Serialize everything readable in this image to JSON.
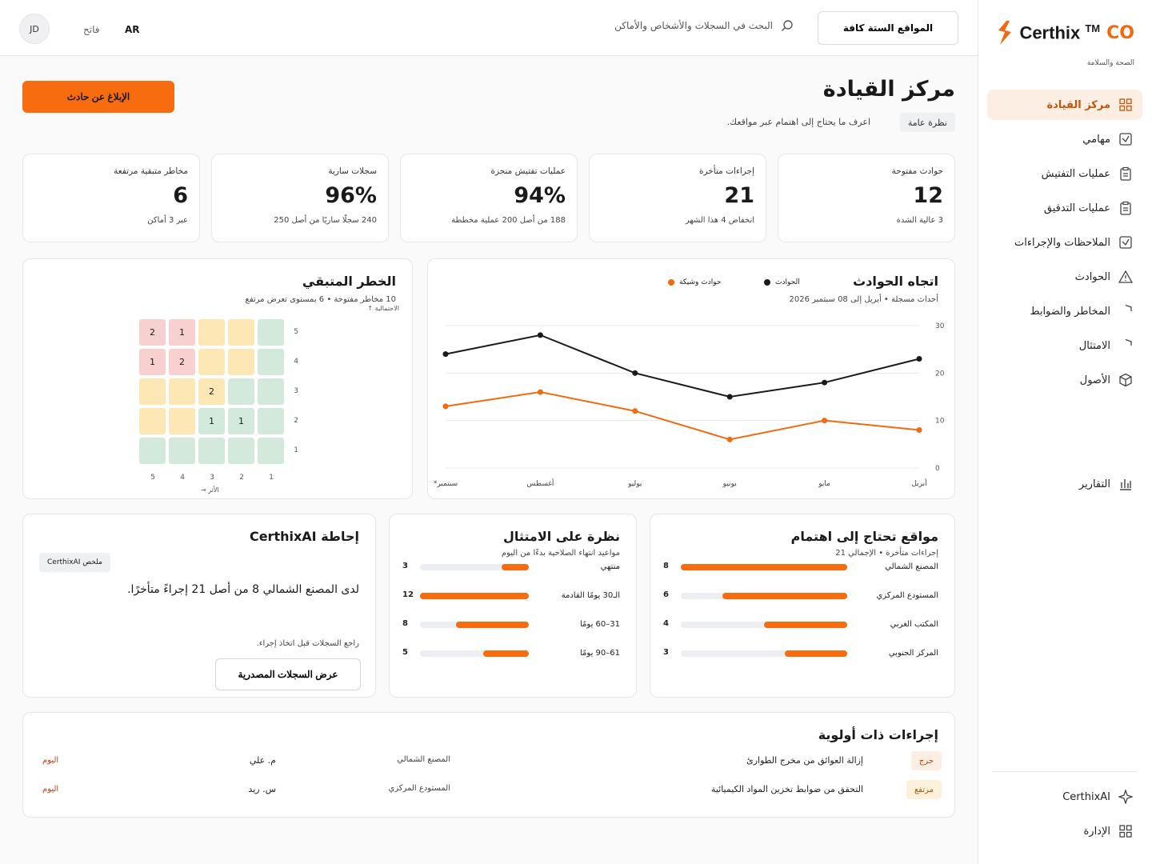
{
  "brand": {
    "name": "Certhix",
    "tm": "TM",
    "suffix": "CO",
    "subtitle": "الصحة والسلامة",
    "accent": "#f26a0f"
  },
  "sidebar": {
    "items": [
      {
        "label": "مركز القيادة",
        "icon": "grid-icon",
        "active": true
      },
      {
        "label": "مهامي",
        "icon": "check-square-icon"
      },
      {
        "label": "عمليات التفتيش",
        "icon": "clipboard-icon"
      },
      {
        "label": "عمليات التدقيق",
        "icon": "clipboard-icon"
      },
      {
        "label": "الملاحظات والإجراءات",
        "icon": "check-square-icon"
      },
      {
        "label": "الحوادث",
        "icon": "warning-icon"
      },
      {
        "label": "المخاطر والضوابط",
        "icon": "shield-icon"
      },
      {
        "label": "الامتثال",
        "icon": "shield-icon"
      },
      {
        "label": "الأصول",
        "icon": "cube-icon"
      }
    ],
    "reports": "التقارير",
    "ai": "CerthixAI",
    "admin": "الإدارة"
  },
  "header": {
    "sites_button": "المواقع الستة كافة",
    "search_placeholder": "البحث في السجلات والأشخاص والأماكن",
    "language": "AR",
    "theme": "فاتح",
    "avatar": "JD"
  },
  "page": {
    "title": "مركز القيادة",
    "chip": "نظرة عامة",
    "subtitle": "اعرف ما يحتاج إلى اهتمام عبر مواقعك.",
    "report_button": "الإبلاغ عن حادث"
  },
  "kpis": [
    {
      "label": "حوادث مفتوحة",
      "value": "12",
      "note": "3 عالية الشدة"
    },
    {
      "label": "إجراءات متأخرة",
      "value": "21",
      "note": "انخفاض 4 هذا الشهر"
    },
    {
      "label": "عمليات تفتيش منجزة",
      "value": "94%",
      "note": "188 من أصل 200 عملية مخططة"
    },
    {
      "label": "سجلات سارية",
      "value": "96%",
      "note": "240 سجلًا ساريًا من أصل 250"
    },
    {
      "label": "مخاطر متبقية مرتفعة",
      "value": "6",
      "note": "عبر 3 أماكن"
    }
  ],
  "trend": {
    "title": "اتجاه الحوادث",
    "subtitle": "أحداث مسجلة • أبريل إلى 08 سبتمبر 2026",
    "legend_incidents": "الحوادث",
    "legend_near": "حوادث وشيكة",
    "color_incidents": "#1a1a1a",
    "color_near": "#f26a0f"
  },
  "chart_data": {
    "type": "line",
    "x": [
      "أبريل",
      "مايو",
      "يونيو",
      "يوليو",
      "أغسطس",
      "سبتمبر*"
    ],
    "series": [
      {
        "name": "الحوادث",
        "values": [
          23,
          18,
          15,
          20,
          28,
          24
        ]
      },
      {
        "name": "حوادث وشيكة",
        "values": [
          8,
          10,
          6,
          12,
          16,
          13
        ]
      }
    ],
    "yticks": [
      "0",
      "10",
      "20",
      "30"
    ],
    "ylim": [
      0,
      30
    ],
    "grid": true,
    "legend": "top"
  },
  "risk": {
    "title": "الخطر المتبقي",
    "subtitle": "10 مخاطر مفتوحة • 6 بمستوى تعرض مرتفع",
    "y_axis": "الاحتمالية ↑",
    "x_axis": "الأثر →",
    "likelihood_labels": [
      "5",
      "4",
      "3",
      "2",
      "1"
    ],
    "impact_labels": [
      "1",
      "2",
      "3",
      "4",
      "5"
    ],
    "grid": [
      [
        "",
        "",
        "",
        "1",
        "2"
      ],
      [
        "",
        "",
        "",
        "2",
        "1"
      ],
      [
        "",
        "",
        "2",
        "",
        ""
      ],
      [
        "",
        "1",
        "1",
        "",
        ""
      ],
      [
        "",
        "",
        "",
        "",
        ""
      ]
    ],
    "colors": [
      [
        "g",
        "y",
        "y",
        "r",
        "r"
      ],
      [
        "g",
        "y",
        "y",
        "r",
        "r"
      ],
      [
        "g",
        "g",
        "y",
        "y",
        "y"
      ],
      [
        "g",
        "g",
        "g",
        "y",
        "y"
      ],
      [
        "g",
        "g",
        "g",
        "g",
        "g"
      ]
    ]
  },
  "sites": {
    "title": "مواقع تحتاج إلى اهتمام",
    "subtitle": "إجراءات متأخرة • الإجمالي 21",
    "max": 8,
    "rows": [
      {
        "name": "المصنع الشمالي",
        "value": 8
      },
      {
        "name": "المستودع المركزي",
        "value": 6
      },
      {
        "name": "المكتب الغربي",
        "value": 4
      },
      {
        "name": "المركز الجنوبي",
        "value": 3
      }
    ]
  },
  "compliance": {
    "title": "نظرة على الامتثال",
    "subtitle": "مواعيد انتهاء الصلاحية بدءًا من اليوم",
    "max": 12,
    "rows": [
      {
        "name": "منتهي",
        "value": 3
      },
      {
        "name": "الـ30 يومًا القادمة",
        "value": 12
      },
      {
        "name": "31–60 يومًا",
        "value": 8
      },
      {
        "name": "61–90 يومًا",
        "value": 5
      }
    ]
  },
  "ai": {
    "title": "إحاطة CerthixAI",
    "chip": "ملخص CerthixAI",
    "text": "لدى المصنع الشمالي 8 من أصل 21 إجراءً متأخرًا.",
    "note": "راجع السجلات قبل اتخاذ إجراء.",
    "button": "عرض السجلات المصدرية"
  },
  "priority": {
    "title": "إجراءات ذات أولوية",
    "rows": [
      {
        "badge": "حرج",
        "badge_bg": "#fdeee3",
        "badge_color": "#c2410c",
        "task": "إزالة العوائق من مخرج الطوارئ",
        "site": "المصنع الشمالي",
        "owner": "م. علي",
        "due": "اليوم"
      },
      {
        "badge": "مرتفع",
        "badge_bg": "#fef1dc",
        "badge_color": "#a15c07",
        "task": "التحقق من ضوابط تخزين المواد الكيميائية",
        "site": "المستودع المركزي",
        "owner": "س. ريد",
        "due": "اليوم"
      }
    ]
  }
}
